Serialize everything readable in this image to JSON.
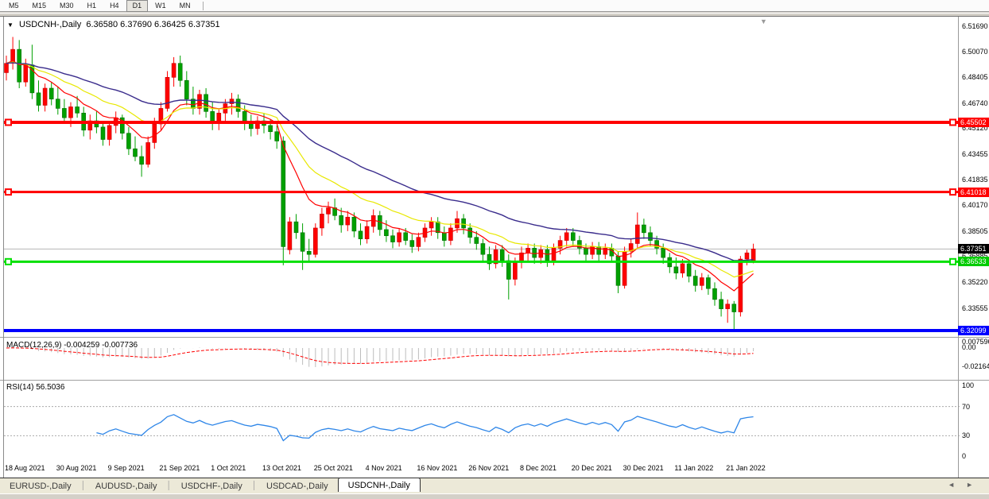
{
  "toolbar": {
    "timeframes": [
      "M5",
      "M15",
      "M30",
      "H1",
      "H4",
      "D1",
      "W1",
      "MN"
    ],
    "active": "D1"
  },
  "title": {
    "symbol": "USDCNH-,Daily",
    "open": "6.36580",
    "high": "6.37690",
    "low": "6.36425",
    "close": "6.37351",
    "dropdown_icon": "symbol-dropdown-icon"
  },
  "price_axis": {
    "labels": [
      "6.51690",
      "6.50070",
      "6.48405",
      "6.46740",
      "6.45120",
      "6.43455",
      "6.41835",
      "6.40170",
      "6.38505",
      "6.36885",
      "6.35220",
      "6.33555"
    ],
    "badges": [
      {
        "text": "6.45502",
        "price": 6.45502,
        "bg": "#ff0000",
        "fg": "#ffffff"
      },
      {
        "text": "6.41018",
        "price": 6.41018,
        "bg": "#ff0000",
        "fg": "#ffffff"
      },
      {
        "text": "6.37351",
        "price": 6.37351,
        "bg": "#000000",
        "fg": "#ffffff"
      },
      {
        "text": "6.36533",
        "price": 6.36533,
        "bg": "#00cc00",
        "fg": "#ffffff"
      },
      {
        "text": "6.32099",
        "price": 6.32099,
        "bg": "#0000ff",
        "fg": "#ffffff"
      }
    ]
  },
  "hlines": [
    {
      "price": 6.45502,
      "color": "#ff0000",
      "width": 4,
      "handles": true
    },
    {
      "price": 6.41018,
      "color": "#ff0000",
      "width": 3,
      "handles": true
    },
    {
      "price": 6.36533,
      "color": "#00e000",
      "width": 3,
      "handles": true
    },
    {
      "price": 6.32099,
      "color": "#0000ff",
      "width": 4,
      "handles": false
    }
  ],
  "price_line": {
    "price": 6.37351,
    "color": "#b4b4b4"
  },
  "macd": {
    "name": "MACD(12,26,9)",
    "value": "-0.004259",
    "signal": "-0.007736",
    "axis": [
      "0.007596",
      "0.00",
      "-0.02164"
    ],
    "bar_color": "#bdbdbd",
    "signal_color": "#ff0000"
  },
  "rsi": {
    "name": "RSI(14)",
    "value": "56.5036",
    "axis": [
      "100",
      "70",
      "30",
      "0"
    ],
    "levels": [
      70,
      30
    ],
    "line_color": "#2e86e8"
  },
  "x_axis": {
    "dates": [
      "18 Aug 2021",
      "30 Aug 2021",
      "9 Sep 2021",
      "21 Sep 2021",
      "1 Oct 2021",
      "13 Oct 2021",
      "25 Oct 2021",
      "4 Nov 2021",
      "16 Nov 2021",
      "26 Nov 2021",
      "8 Dec 2021",
      "20 Dec 2021",
      "30 Dec 2021",
      "11 Jan 2022",
      "21 Jan 2022"
    ]
  },
  "tabs": {
    "items": [
      "EURUSD-,Daily",
      "AUDUSD-,Daily",
      "USDCHF-,Daily",
      "USDCAD-,Daily",
      "USDCNH-,Daily"
    ],
    "active": "USDCNH-,Daily",
    "scroll_left_icon": "tab-scroll-left-icon",
    "scroll_right_icon": "tab-scroll-right-icon"
  },
  "colors": {
    "candle_up": "#ff0000",
    "candle_up_edge": "#c40000",
    "candle_down": "#00a000",
    "candle_down_edge": "#006e00",
    "ma_fast": "#ff0000",
    "ma_mid": "#e8e800",
    "ma_slow": "#3a2c8c"
  },
  "moving_averages": [
    {
      "name": "fast",
      "period": 10,
      "color": "#ff0000"
    },
    {
      "name": "mid",
      "period": 20,
      "color": "#e8e800"
    },
    {
      "name": "slow",
      "period": 40,
      "color": "#3a2c8c"
    }
  ],
  "chart_data": {
    "type": "candlestick",
    "symbol": "USDCNH",
    "timeframe": "Daily",
    "ylim": [
      6.31,
      6.5169
    ],
    "candles_ohlc": [
      [
        6.487,
        6.498,
        6.482,
        6.493
      ],
      [
        6.493,
        6.51,
        6.489,
        6.502
      ],
      [
        6.502,
        6.508,
        6.477,
        6.481
      ],
      [
        6.481,
        6.496,
        6.478,
        6.492
      ],
      [
        6.492,
        6.505,
        6.47,
        6.474
      ],
      [
        6.474,
        6.482,
        6.462,
        6.466
      ],
      [
        6.466,
        6.48,
        6.462,
        6.477
      ],
      [
        6.477,
        6.481,
        6.466,
        6.47
      ],
      [
        6.47,
        6.478,
        6.46,
        6.464
      ],
      [
        6.464,
        6.47,
        6.454,
        6.458
      ],
      [
        6.458,
        6.468,
        6.452,
        6.465
      ],
      [
        6.465,
        6.472,
        6.458,
        6.461
      ],
      [
        6.461,
        6.465,
        6.446,
        6.45
      ],
      [
        6.45,
        6.46,
        6.444,
        6.456
      ],
      [
        6.456,
        6.462,
        6.448,
        6.452
      ],
      [
        6.452,
        6.456,
        6.44,
        6.444
      ],
      [
        6.444,
        6.456,
        6.44,
        6.453
      ],
      [
        6.453,
        6.462,
        6.448,
        6.458
      ],
      [
        6.458,
        6.46,
        6.444,
        6.448
      ],
      [
        6.448,
        6.452,
        6.434,
        6.438
      ],
      [
        6.438,
        6.446,
        6.43,
        6.433
      ],
      [
        6.433,
        6.44,
        6.42,
        6.428
      ],
      [
        6.428,
        6.446,
        6.426,
        6.442
      ],
      [
        6.442,
        6.458,
        6.438,
        6.454
      ],
      [
        6.454,
        6.468,
        6.45,
        6.464
      ],
      [
        6.464,
        6.488,
        6.462,
        6.484
      ],
      [
        6.484,
        6.497,
        6.478,
        6.493
      ],
      [
        6.493,
        6.498,
        6.478,
        6.482
      ],
      [
        6.482,
        6.488,
        6.466,
        6.47
      ],
      [
        6.47,
        6.478,
        6.46,
        6.464
      ],
      [
        6.464,
        6.476,
        6.46,
        6.473
      ],
      [
        6.473,
        6.477,
        6.458,
        6.462
      ],
      [
        6.462,
        6.468,
        6.45,
        6.455
      ],
      [
        6.455,
        6.464,
        6.45,
        6.461
      ],
      [
        6.461,
        6.47,
        6.456,
        6.467
      ],
      [
        6.467,
        6.474,
        6.46,
        6.47
      ],
      [
        6.47,
        6.473,
        6.458,
        6.462
      ],
      [
        6.462,
        6.466,
        6.45,
        6.455
      ],
      [
        6.455,
        6.46,
        6.446,
        6.451
      ],
      [
        6.451,
        6.459,
        6.447,
        6.456
      ],
      [
        6.456,
        6.461,
        6.448,
        6.453
      ],
      [
        6.453,
        6.457,
        6.444,
        6.449
      ],
      [
        6.449,
        6.453,
        6.438,
        6.443
      ],
      [
        6.443,
        6.446,
        6.363,
        6.375
      ],
      [
        6.373,
        6.394,
        6.37,
        6.391
      ],
      [
        6.391,
        6.396,
        6.38,
        6.384
      ],
      [
        6.384,
        6.39,
        6.36,
        6.372
      ],
      [
        6.372,
        6.38,
        6.366,
        6.37
      ],
      [
        6.37,
        6.39,
        6.368,
        6.387
      ],
      [
        6.387,
        6.4,
        6.382,
        6.396
      ],
      [
        6.396,
        6.404,
        6.39,
        6.4
      ],
      [
        6.4,
        6.406,
        6.392,
        6.395
      ],
      [
        6.395,
        6.4,
        6.384,
        6.389
      ],
      [
        6.389,
        6.398,
        6.385,
        6.394
      ],
      [
        6.394,
        6.397,
        6.381,
        6.385
      ],
      [
        6.385,
        6.39,
        6.376,
        6.38
      ],
      [
        6.38,
        6.392,
        6.377,
        6.388
      ],
      [
        6.388,
        6.399,
        6.384,
        6.395
      ],
      [
        6.395,
        6.398,
        6.382,
        6.386
      ],
      [
        6.386,
        6.392,
        6.378,
        6.382
      ],
      [
        6.382,
        6.386,
        6.374,
        6.378
      ],
      [
        6.378,
        6.387,
        6.375,
        6.384
      ],
      [
        6.384,
        6.387,
        6.376,
        6.379
      ],
      [
        6.379,
        6.383,
        6.371,
        6.375
      ],
      [
        6.375,
        6.384,
        6.372,
        6.381
      ],
      [
        6.381,
        6.39,
        6.378,
        6.387
      ],
      [
        6.387,
        6.394,
        6.382,
        6.391
      ],
      [
        6.391,
        6.394,
        6.38,
        6.384
      ],
      [
        6.384,
        6.388,
        6.375,
        6.379
      ],
      [
        6.379,
        6.39,
        6.376,
        6.387
      ],
      [
        6.387,
        6.398,
        6.384,
        6.393
      ],
      [
        6.393,
        6.396,
        6.383,
        6.387
      ],
      [
        6.387,
        6.39,
        6.377,
        6.381
      ],
      [
        6.381,
        6.385,
        6.373,
        6.377
      ],
      [
        6.377,
        6.38,
        6.366,
        6.37
      ],
      [
        6.37,
        6.375,
        6.36,
        6.364
      ],
      [
        6.364,
        6.376,
        6.361,
        6.373
      ],
      [
        6.373,
        6.376,
        6.362,
        6.366
      ],
      [
        6.366,
        6.37,
        6.341,
        6.354
      ],
      [
        6.354,
        6.368,
        6.35,
        6.365
      ],
      [
        6.365,
        6.375,
        6.361,
        6.371
      ],
      [
        6.371,
        6.377,
        6.365,
        6.374
      ],
      [
        6.374,
        6.377,
        6.364,
        6.368
      ],
      [
        6.368,
        6.376,
        6.364,
        6.373
      ],
      [
        6.373,
        6.376,
        6.362,
        6.366
      ],
      [
        6.366,
        6.377,
        6.363,
        6.374
      ],
      [
        6.374,
        6.382,
        6.37,
        6.379
      ],
      [
        6.379,
        6.387,
        6.375,
        6.384
      ],
      [
        6.384,
        6.387,
        6.375,
        6.379
      ],
      [
        6.379,
        6.382,
        6.37,
        6.374
      ],
      [
        6.374,
        6.377,
        6.366,
        6.37
      ],
      [
        6.37,
        6.378,
        6.367,
        6.375
      ],
      [
        6.375,
        6.378,
        6.366,
        6.37
      ],
      [
        6.37,
        6.377,
        6.367,
        6.374
      ],
      [
        6.374,
        6.377,
        6.365,
        6.369
      ],
      [
        6.369,
        6.372,
        6.345,
        6.35
      ],
      [
        6.35,
        6.375,
        6.348,
        6.372
      ],
      [
        6.372,
        6.38,
        6.368,
        6.377
      ],
      [
        6.377,
        6.397,
        6.374,
        6.389
      ],
      [
        6.389,
        6.393,
        6.38,
        6.384
      ],
      [
        6.384,
        6.388,
        6.375,
        6.379
      ],
      [
        6.379,
        6.382,
        6.37,
        6.374
      ],
      [
        6.374,
        6.377,
        6.364,
        6.368
      ],
      [
        6.368,
        6.371,
        6.358,
        6.362
      ],
      [
        6.362,
        6.368,
        6.354,
        6.358
      ],
      [
        6.358,
        6.367,
        6.355,
        6.364
      ],
      [
        6.364,
        6.366,
        6.352,
        6.356
      ],
      [
        6.356,
        6.36,
        6.346,
        6.35
      ],
      [
        6.35,
        6.358,
        6.347,
        6.355
      ],
      [
        6.355,
        6.357,
        6.344,
        6.348
      ],
      [
        6.348,
        6.352,
        6.337,
        6.341
      ],
      [
        6.341,
        6.346,
        6.33,
        6.335
      ],
      [
        6.335,
        6.341,
        6.326,
        6.338
      ],
      [
        6.338,
        6.34,
        6.322,
        6.333
      ],
      [
        6.333,
        6.369,
        6.33,
        6.367
      ],
      [
        6.367,
        6.373,
        6.363,
        6.371
      ],
      [
        6.3658,
        6.3769,
        6.36425,
        6.37351
      ]
    ]
  }
}
